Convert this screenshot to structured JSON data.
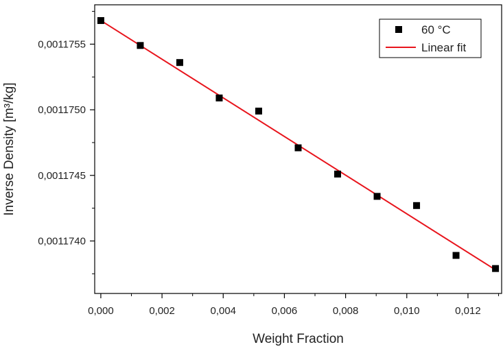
{
  "chart_data": {
    "type": "scatter",
    "xlabel": "Weight Fraction",
    "ylabel": "Inverse Density [m³/kg]",
    "xlim": [
      -0.0002,
      0.0131
    ],
    "ylim": [
      0.0011736,
      0.0011758
    ],
    "x_ticks": [
      0.0,
      0.002,
      0.004,
      0.006,
      0.008,
      0.01,
      0.012
    ],
    "x_tick_labels": [
      "0,000",
      "0,002",
      "0,004",
      "0,006",
      "0,008",
      "0,010",
      "0,012"
    ],
    "y_ticks": [
      0.001174,
      0.0011745,
      0.001175,
      0.0011755
    ],
    "y_tick_labels": [
      "0,0011740",
      "0,0011745",
      "0,0011750",
      "0,0011755"
    ],
    "legend_position": "top-right",
    "grid": false,
    "series": [
      {
        "name": "60 °C",
        "marker": "square",
        "color": "#000000",
        "x": [
          0.0,
          0.00129,
          0.00258,
          0.00387,
          0.00516,
          0.00645,
          0.00774,
          0.00903,
          0.01032,
          0.01161,
          0.0129
        ],
        "y": [
          0.00117568,
          0.00117549,
          0.00117536,
          0.00117509,
          0.00117499,
          0.00117471,
          0.00117451,
          0.00117434,
          0.00117427,
          0.00117389,
          0.00117379
        ]
      },
      {
        "name": "Linear fit",
        "type": "line",
        "color": "#e8141c",
        "x": [
          0.0,
          0.0129
        ],
        "y": [
          0.00117568,
          0.00117378
        ]
      }
    ]
  }
}
